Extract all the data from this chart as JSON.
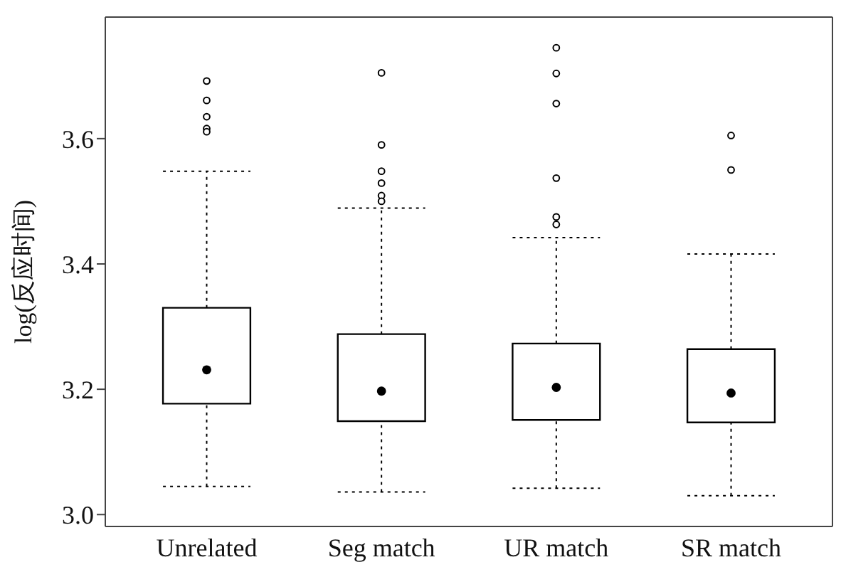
{
  "chart_data": {
    "type": "box",
    "ylabel": "log(反应时间)",
    "categories": [
      "Unrelated",
      "Seg match",
      "UR match",
      "SR match"
    ],
    "ylim": [
      2.981,
      3.794
    ],
    "yticks": [
      {
        "value": 3,
        "label": "3.0"
      },
      {
        "value": 3.2,
        "label": "3.2"
      },
      {
        "value": 3.4,
        "label": "3.4"
      },
      {
        "value": 3.6,
        "label": "3.6"
      }
    ],
    "grid": false,
    "legend": false,
    "series": [
      {
        "color": "#000000",
        "boxes": [
          {
            "low": 3.045,
            "q1": 3.177,
            "median": 3.231,
            "q3": 3.33,
            "high": 3.548,
            "outliers": [
              3.692,
              3.661,
              3.635,
              3.616,
              3.611
            ]
          },
          {
            "low": 3.036,
            "q1": 3.149,
            "median": 3.197,
            "q3": 3.288,
            "high": 3.489,
            "outliers": [
              3.705,
              3.59,
              3.548,
              3.529,
              3.509,
              3.5
            ]
          },
          {
            "low": 3.042,
            "q1": 3.151,
            "median": 3.203,
            "q3": 3.273,
            "high": 3.442,
            "outliers": [
              3.745,
              3.704,
              3.656,
              3.537,
              3.475,
              3.463
            ]
          },
          {
            "low": 3.03,
            "q1": 3.147,
            "median": 3.194,
            "q3": 3.264,
            "high": 3.416,
            "outliers": [
              3.605,
              3.55
            ]
          }
        ]
      }
    ]
  }
}
